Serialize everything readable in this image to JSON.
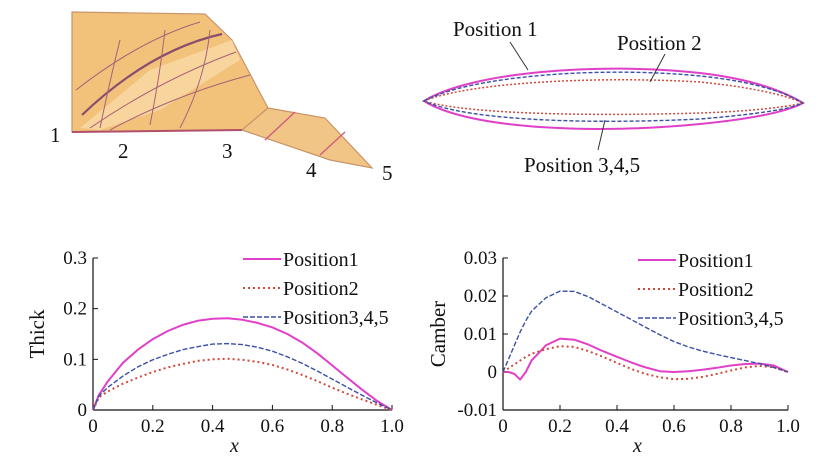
{
  "wing_figure": {
    "station_labels": [
      "1",
      "2",
      "3",
      "4",
      "5"
    ]
  },
  "airfoil_figure": {
    "labels": [
      "Position 1",
      "Position 2",
      "Position 3,4,5"
    ]
  },
  "colors": {
    "position1": "#e040c8",
    "position2": "#d2493c",
    "position345": "#3a4fa8",
    "wing_fill": "#f2c27a",
    "wing_edge": "#c8956a",
    "wing_line": "#a8607a"
  },
  "chart_data": [
    {
      "type": "line",
      "xlabel": "x",
      "ylabel": "Thick",
      "xlim": [
        0,
        1.0
      ],
      "ylim": [
        0,
        0.3
      ],
      "xticks": [
        "0",
        "0.2",
        "0.4",
        "0.6",
        "0.8",
        "1.0"
      ],
      "yticks": [
        "0",
        "0.1",
        "0.2",
        "0.3"
      ],
      "legend_position": "top-right",
      "x": [
        0,
        0.02,
        0.05,
        0.1,
        0.15,
        0.2,
        0.25,
        0.3,
        0.35,
        0.4,
        0.45,
        0.5,
        0.55,
        0.6,
        0.65,
        0.7,
        0.75,
        0.8,
        0.85,
        0.9,
        0.95,
        1.0
      ],
      "series": [
        {
          "name": "Position1",
          "style": "solid",
          "values": [
            0.0,
            0.03,
            0.057,
            0.093,
            0.119,
            0.14,
            0.156,
            0.168,
            0.176,
            0.18,
            0.181,
            0.178,
            0.172,
            0.163,
            0.15,
            0.133,
            0.112,
            0.088,
            0.064,
            0.04,
            0.018,
            0.0
          ]
        },
        {
          "name": "Position2",
          "style": "dotted",
          "values": [
            0.0,
            0.025,
            0.037,
            0.052,
            0.064,
            0.075,
            0.084,
            0.091,
            0.097,
            0.1,
            0.101,
            0.099,
            0.095,
            0.089,
            0.08,
            0.069,
            0.057,
            0.044,
            0.032,
            0.021,
            0.01,
            0.0
          ]
        },
        {
          "name": "Position3,4,5",
          "style": "dashed",
          "values": [
            0.0,
            0.028,
            0.045,
            0.067,
            0.085,
            0.099,
            0.11,
            0.119,
            0.125,
            0.13,
            0.131,
            0.129,
            0.124,
            0.116,
            0.105,
            0.092,
            0.077,
            0.061,
            0.045,
            0.029,
            0.014,
            0.0
          ]
        }
      ]
    },
    {
      "type": "line",
      "xlabel": "x",
      "ylabel": "Camber",
      "xlim": [
        0,
        1.0
      ],
      "ylim": [
        -0.01,
        0.03
      ],
      "xticks": [
        "0",
        "0.2",
        "0.4",
        "0.6",
        "0.8",
        "1.0"
      ],
      "yticks": [
        "-0.01",
        "0",
        "0.01",
        "0.02",
        "0.03"
      ],
      "legend_position": "top-right",
      "x": [
        0,
        0.02,
        0.04,
        0.06,
        0.08,
        0.1,
        0.15,
        0.2,
        0.25,
        0.3,
        0.35,
        0.4,
        0.45,
        0.5,
        0.55,
        0.6,
        0.65,
        0.7,
        0.75,
        0.8,
        0.85,
        0.9,
        0.95,
        1.0
      ],
      "series": [
        {
          "name": "Position1",
          "style": "solid",
          "values": [
            0.0,
            0.0,
            -0.0005,
            -0.002,
            0.0,
            0.003,
            0.007,
            0.0088,
            0.0085,
            0.0072,
            0.0055,
            0.004,
            0.0025,
            0.0012,
            0.0002,
            0.0,
            0.0002,
            0.0006,
            0.0011,
            0.0017,
            0.0021,
            0.0022,
            0.0017,
            0.0
          ]
        },
        {
          "name": "Position2",
          "style": "dotted",
          "values": [
            0.0,
            0.001,
            0.002,
            0.003,
            0.004,
            0.0048,
            0.006,
            0.0068,
            0.0066,
            0.0055,
            0.004,
            0.0024,
            0.0008,
            -0.0005,
            -0.0014,
            -0.0019,
            -0.0018,
            -0.0013,
            -0.0005,
            0.0004,
            0.0012,
            0.0016,
            0.0012,
            0.0
          ]
        },
        {
          "name": "Position3,4,5",
          "style": "dashed",
          "values": [
            0.0,
            0.0035,
            0.007,
            0.0105,
            0.0135,
            0.016,
            0.0195,
            0.0213,
            0.0212,
            0.0198,
            0.0178,
            0.0158,
            0.0138,
            0.0118,
            0.0098,
            0.008,
            0.0066,
            0.0055,
            0.0046,
            0.0038,
            0.003,
            0.0022,
            0.0012,
            0.0
          ]
        }
      ]
    }
  ]
}
